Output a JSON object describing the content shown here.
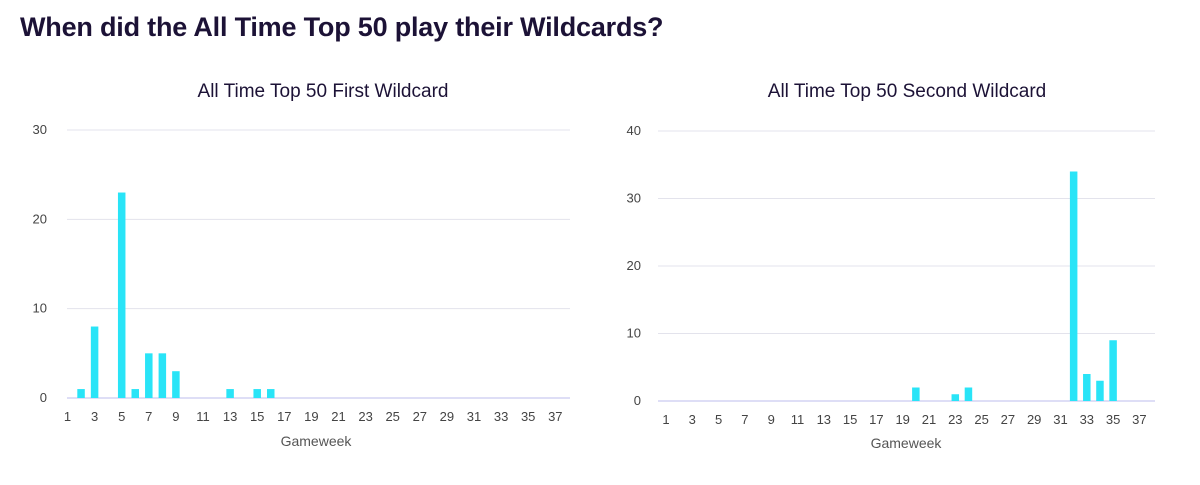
{
  "page": {
    "title": "When did the All Time Top 50 play their Wildcards?"
  },
  "colors": {
    "bar": "#29e4f7",
    "grid": "#e3e3ec",
    "axis_line": "#c9c9f0",
    "title": "#1c1236"
  },
  "chart_data": [
    {
      "type": "bar",
      "title": "All Time Top 50 First Wildcard",
      "xlabel": "Gameweek",
      "ylabel": "",
      "x_range": [
        1,
        38
      ],
      "xticks": [
        1,
        3,
        5,
        7,
        9,
        11,
        13,
        15,
        17,
        19,
        21,
        23,
        25,
        27,
        29,
        31,
        33,
        35,
        37
      ],
      "ylim": [
        0,
        30
      ],
      "yticks": [
        0,
        10,
        20,
        30
      ],
      "grid": true,
      "x": [
        2,
        3,
        5,
        6,
        7,
        8,
        9,
        13,
        15,
        16
      ],
      "values": [
        1,
        8,
        23,
        1,
        5,
        5,
        3,
        1,
        1,
        1
      ]
    },
    {
      "type": "bar",
      "title": "All Time Top 50 Second Wildcard",
      "xlabel": "Gameweek",
      "ylabel": "",
      "x_range": [
        1,
        38
      ],
      "xticks": [
        1,
        3,
        5,
        7,
        9,
        11,
        13,
        15,
        17,
        19,
        21,
        23,
        25,
        27,
        29,
        31,
        33,
        35,
        37
      ],
      "ylim": [
        0,
        40
      ],
      "yticks": [
        0,
        10,
        20,
        30,
        40
      ],
      "grid": true,
      "x": [
        20,
        23,
        24,
        32,
        33,
        34,
        35
      ],
      "values": [
        2,
        1,
        2,
        34,
        4,
        3,
        9
      ]
    }
  ]
}
